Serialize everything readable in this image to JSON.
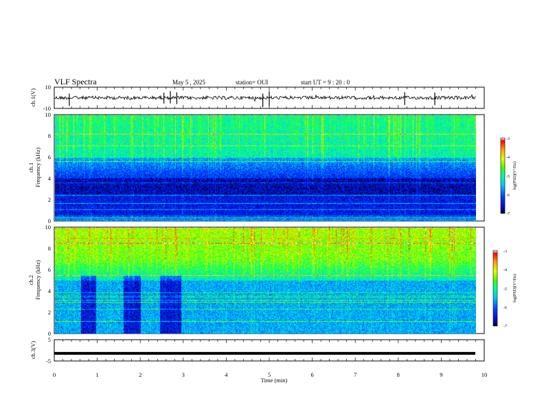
{
  "header": {
    "title": "VLF Spectra",
    "date": "May 5 , 2025",
    "station": "station= OUI",
    "start": "start UT =  9 : 20 : 0"
  },
  "colors": {
    "trace": "#000000",
    "colormap": [
      "#000000",
      "#0000c8",
      "#0040ff",
      "#00c8ff",
      "#00ffa0",
      "#40ff00",
      "#e0ff00",
      "#ffa000",
      "#ff0000",
      "#ffffff"
    ]
  },
  "chart_data": [
    {
      "type": "line",
      "name": "ch1-waveform",
      "ylabel": "ch.1(V)",
      "ylim": [
        -10,
        10
      ],
      "yticks": [
        "10",
        "-10"
      ],
      "xlim": [
        0,
        10
      ],
      "baseline": 0,
      "spikes": [
        0.35,
        2.55,
        2.7,
        2.85,
        4.85,
        5.0,
        8.15,
        8.85
      ]
    },
    {
      "type": "heatmap",
      "name": "ch1-spectrogram",
      "ylabel": "ch.1",
      "ylabel2": "Frequency (kHz)",
      "ylim": [
        0,
        10
      ],
      "yticks": [
        "0",
        "2",
        "4",
        "6",
        "8",
        "10"
      ],
      "xlim": [
        0,
        9.83
      ],
      "levels_log_psd": {
        "0-0.5kHz": -6.0,
        "0.5-4kHz": -6.5,
        "4-6kHz": -6.3,
        "6-10kHz": -5.0
      },
      "colorbar": {
        "label": "log(PSD)(V²/Hz)",
        "min": -7,
        "max": -3,
        "ticks": [
          "-3",
          "-4",
          "-5",
          "-6",
          "-7"
        ]
      }
    },
    {
      "type": "heatmap",
      "name": "ch2-spectrogram",
      "ylabel": "ch.2",
      "ylabel2": "Frequency (kHz)",
      "ylim": [
        0,
        10
      ],
      "yticks": [
        "0",
        "2",
        "4",
        "6",
        "8",
        "10"
      ],
      "xlim": [
        0,
        9.83
      ],
      "levels_log_psd": {
        "0-5kHz": -5.6,
        "5-7kHz": -5.0,
        "7-10kHz": -4.2
      },
      "quiet_intervals_min": [
        [
          0.6,
          0.95
        ],
        [
          1.6,
          2.0
        ],
        [
          2.45,
          2.95
        ]
      ],
      "colorbar": {
        "label": "log(PSD)(V²/Hz)",
        "min": -7,
        "max": -3,
        "ticks": [
          "-3",
          "-4",
          "-5",
          "-6",
          "-7"
        ]
      }
    },
    {
      "type": "line",
      "name": "ch3-waveform",
      "ylabel": "ch.3(V)",
      "ylim": [
        -5,
        5
      ],
      "yticks": [
        "5",
        "-5"
      ],
      "xlim": [
        0,
        10
      ],
      "value": -1.4
    }
  ],
  "xaxis": {
    "label": "Time (min)",
    "ticks": [
      "0",
      "1",
      "2",
      "3",
      "4",
      "5",
      "6",
      "7",
      "8",
      "9",
      "10"
    ]
  }
}
